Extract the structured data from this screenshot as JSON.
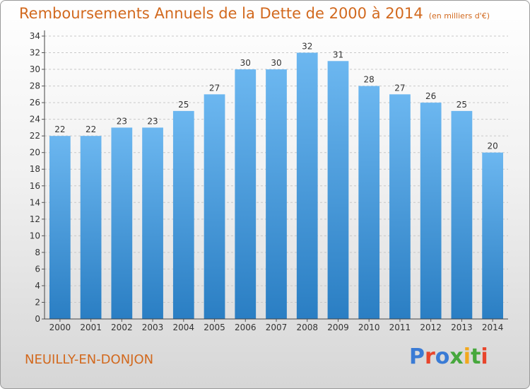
{
  "chart_data": {
    "type": "bar",
    "title": "Remboursements Annuels de la Dette de 2000 à 2014",
    "subtitle": "(en milliers d'€)",
    "categories": [
      "2000",
      "2001",
      "2002",
      "2003",
      "2004",
      "2005",
      "2006",
      "2007",
      "2008",
      "2009",
      "2010",
      "2011",
      "2012",
      "2013",
      "2014"
    ],
    "values": [
      22,
      22,
      23,
      23,
      25,
      27,
      30,
      30,
      32,
      31,
      28,
      27,
      26,
      25,
      20
    ],
    "ylim": [
      0,
      34
    ],
    "yticks": [
      0,
      2,
      4,
      6,
      8,
      10,
      12,
      14,
      16,
      18,
      20,
      22,
      24,
      26,
      28,
      30,
      32,
      34
    ],
    "grid": true,
    "bar_color_top": "#6cb7f0",
    "bar_color_bottom": "#2a7ec3"
  },
  "footer": {
    "commune": "NEUILLY-EN-DONJON",
    "logo_text": "Proxiti"
  }
}
